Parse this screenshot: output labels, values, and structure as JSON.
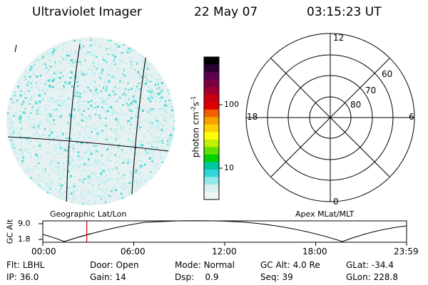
{
  "header": {
    "instrument": "Ultraviolet Imager",
    "date": "22 May 07",
    "time": "03:15:23 UT"
  },
  "image_panel": {
    "filter_mark": "l",
    "grid_label": "Geographic Lat/Lon",
    "speckle_color": "#4fd8d8",
    "speckle_color_light": "#bfeff0",
    "disk_color": "#e8f1f1"
  },
  "colorbar": {
    "label_main": "photon cm",
    "label_exp1": "-2",
    "label_mid": "s",
    "label_exp2": "-1",
    "ticks": [
      "100",
      "10"
    ],
    "colors": [
      "#000000",
      "#2a0030",
      "#5a0050",
      "#7a0040",
      "#a00030",
      "#c80010",
      "#e00000",
      "#f06000",
      "#f8a000",
      "#ffd000",
      "#ffff00",
      "#c0f000",
      "#60e000",
      "#00d000",
      "#00c8a0",
      "#30d8d8",
      "#90e8e8",
      "#d8f0f0",
      "#eef6f6"
    ]
  },
  "polar_plot": {
    "label": "Apex MLat/MLT",
    "mlt_labels": {
      "top": "12",
      "left": "18",
      "right": "6",
      "bottom": "0"
    },
    "lat_labels": [
      "60",
      "70",
      "80"
    ]
  },
  "alt_strip": {
    "ylabel": "GC Alt",
    "ytick_top": "9.0",
    "ytick_bottom": "1.8",
    "xticks": [
      "00:00",
      "06:00",
      "12:00",
      "18:00",
      "23:59"
    ],
    "marker_time_hours": 2.9,
    "marker_color": "#d00000"
  },
  "info": {
    "row1": [
      {
        "key": "Flt:",
        "val": "LBHL"
      },
      {
        "key": "Door:",
        "val": "Open"
      },
      {
        "key": "Mode:",
        "val": "Normal"
      },
      {
        "key": "GC Alt:",
        "val": "4.0 Re"
      },
      {
        "key": "GLat:",
        "val": "-34.4"
      }
    ],
    "row2": [
      {
        "key": "IP:",
        "val": "36.0"
      },
      {
        "key": "Gain:",
        "val": "14"
      },
      {
        "key": "Dsp:",
        "val": "0.9"
      },
      {
        "key": "Seq:",
        "val": "39"
      },
      {
        "key": "GLon:",
        "val": "228.8"
      }
    ]
  }
}
